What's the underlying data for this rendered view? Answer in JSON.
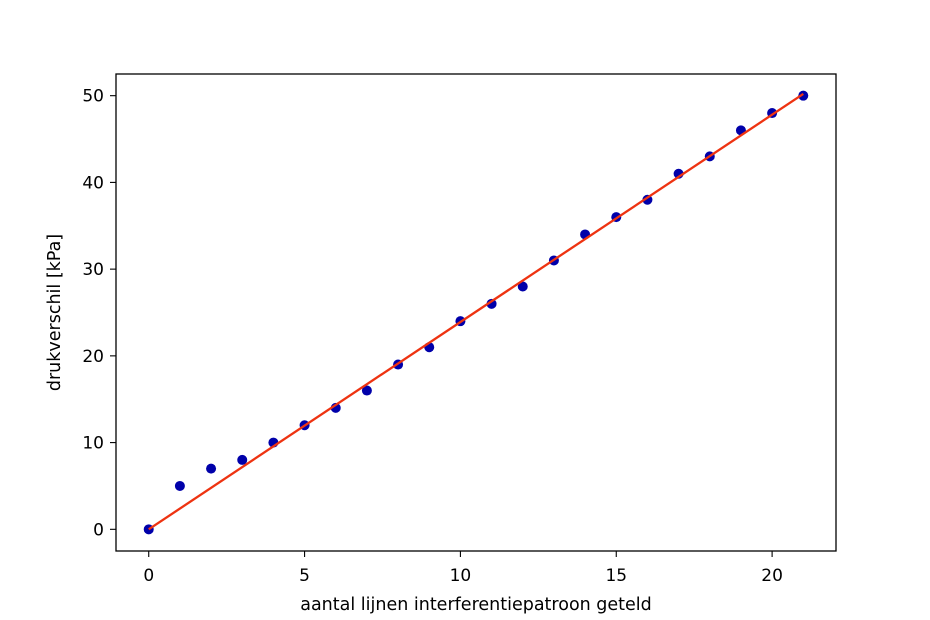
{
  "chart_data": {
    "type": "scatter",
    "title": "",
    "xlabel": "aantal lijnen interferentiepatroon geteld",
    "ylabel": "drukverschil [kPa]",
    "xlim": [
      -1.05,
      22.05
    ],
    "ylim": [
      -2.5,
      52.5
    ],
    "xticks": [
      0,
      5,
      10,
      15,
      20
    ],
    "yticks": [
      0,
      10,
      20,
      30,
      40,
      50
    ],
    "grid": false,
    "series": [
      {
        "kind": "scatter",
        "color": "#0000aa",
        "x": [
          0,
          1,
          2,
          3,
          4,
          5,
          6,
          7,
          8,
          9,
          10,
          11,
          12,
          13,
          14,
          15,
          16,
          17,
          18,
          19,
          20,
          21
        ],
        "y": [
          0,
          5,
          7,
          8,
          10,
          12,
          14,
          16,
          19,
          21,
          24,
          26,
          28,
          31,
          34,
          36,
          38,
          41,
          43,
          46,
          48,
          50
        ]
      },
      {
        "kind": "line",
        "color": "#ee3311",
        "x": [
          0,
          21
        ],
        "y": [
          0,
          50.2
        ]
      }
    ]
  }
}
